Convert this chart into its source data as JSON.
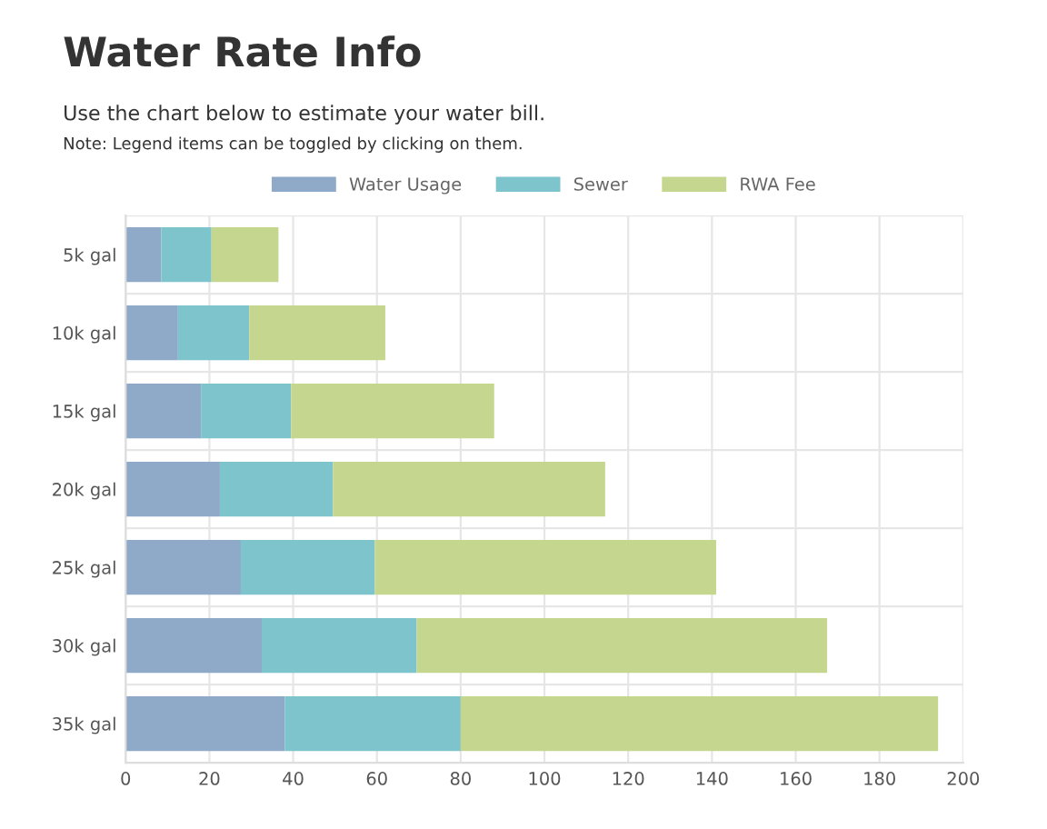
{
  "chart_data": {
    "type": "bar",
    "orientation": "horizontal",
    "stacked": true,
    "title": "Water Rate Info",
    "subtitle": "Use the chart below to estimate your water bill.",
    "annotations": [
      "Note: Legend items can be toggled by clicking on them."
    ],
    "categories": [
      "5k gal",
      "10k gal",
      "15k gal",
      "20k gal",
      "25k gal",
      "30k gal",
      "35k gal"
    ],
    "series": [
      {
        "name": "Water Usage",
        "color": "#8fa9c9",
        "values": [
          8.5,
          12.5,
          18,
          22.5,
          27.5,
          32.5,
          38
        ]
      },
      {
        "name": "Sewer",
        "color": "#7ec4cc",
        "values": [
          12,
          17,
          21.5,
          27,
          32,
          37,
          42
        ]
      },
      {
        "name": "RWA Fee",
        "color": "#c5d78f",
        "values": [
          16,
          32.5,
          48.5,
          65,
          81.5,
          98,
          114
        ]
      }
    ],
    "xlim": [
      0,
      200
    ],
    "xticks": [
      0,
      20,
      40,
      60,
      80,
      100,
      120,
      140,
      160,
      180,
      200
    ],
    "grid": true,
    "legend": "top"
  }
}
